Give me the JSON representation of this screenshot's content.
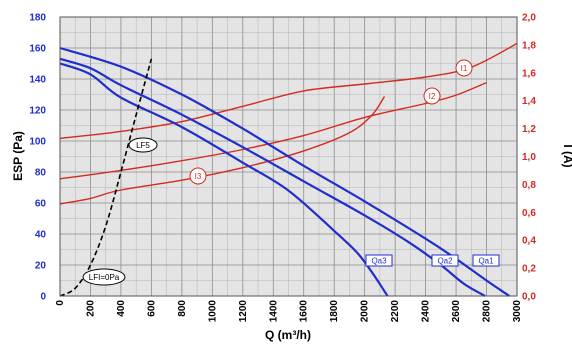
{
  "chart_data": {
    "type": "line",
    "xlabel": "Q (m³/h)",
    "ylabel_left": "ESP (Pa)",
    "ylabel_right": "I (A)",
    "xlim": [
      0,
      3000
    ],
    "ylim_left": [
      0,
      180
    ],
    "ylim_right": [
      0,
      2.0
    ],
    "x_ticks": [
      "0",
      "200",
      "400",
      "600",
      "800",
      "1000",
      "1200",
      "1400",
      "1600",
      "1800",
      "2000",
      "2200",
      "2400",
      "2600",
      "2800",
      "3000"
    ],
    "y_left_ticks": [
      "0",
      "20",
      "40",
      "60",
      "80",
      "100",
      "120",
      "140",
      "160",
      "180"
    ],
    "y_right_ticks": [
      "0,0",
      "0,2",
      "0,4",
      "0,6",
      "0,8",
      "1,0",
      "1,2",
      "1,4",
      "1,6",
      "1,8",
      "2,0"
    ],
    "grid": true,
    "colors": {
      "pressure": "#1f2fcc",
      "current": "#d42a20",
      "lf": "#000000",
      "axis_left": "#1f2fcc",
      "axis_right": "#d42a20"
    },
    "pressure_series": [
      {
        "name": "Qa1",
        "axis": "left",
        "color": "#1f2fcc",
        "x": [
          0,
          400,
          800,
          1200,
          1600,
          2000,
          2400,
          2600,
          2800,
          2950
        ],
        "y": [
          160,
          148,
          130,
          108,
          84,
          61,
          37,
          24,
          10,
          0
        ]
      },
      {
        "name": "Qa2",
        "axis": "left",
        "color": "#1f2fcc",
        "x": [
          0,
          200,
          400,
          800,
          1200,
          1600,
          2000,
          2300,
          2500,
          2650,
          2790
        ],
        "y": [
          153,
          147,
          136,
          117,
          96,
          74,
          52,
          34,
          20,
          8,
          0
        ]
      },
      {
        "name": "Qa3",
        "axis": "left",
        "color": "#1f2fcc",
        "x": [
          0,
          200,
          400,
          800,
          1200,
          1500,
          1800,
          1950,
          2050,
          2150
        ],
        "y": [
          150,
          143,
          128,
          109,
          86,
          68,
          42,
          28,
          15,
          0
        ]
      }
    ],
    "current_series": [
      {
        "name": "I1",
        "axis": "right",
        "color": "#d42a20",
        "x": [
          0,
          400,
          800,
          1200,
          1600,
          2000,
          2400,
          2700,
          3000
        ],
        "y": [
          1.13,
          1.18,
          1.25,
          1.36,
          1.47,
          1.52,
          1.57,
          1.64,
          1.81
        ]
      },
      {
        "name": "I2",
        "axis": "right",
        "color": "#d42a20",
        "x": [
          0,
          400,
          800,
          1200,
          1600,
          2000,
          2400,
          2600,
          2800
        ],
        "y": [
          0.84,
          0.9,
          0.97,
          1.05,
          1.15,
          1.28,
          1.38,
          1.44,
          1.53
        ]
      },
      {
        "name": "I3",
        "axis": "right",
        "color": "#d42a20",
        "x": [
          0,
          200,
          400,
          800,
          1200,
          1600,
          1900,
          2050,
          2130
        ],
        "y": [
          0.66,
          0.7,
          0.76,
          0.83,
          0.92,
          1.04,
          1.17,
          1.3,
          1.43
        ]
      }
    ],
    "system_curve": {
      "name": "LF5",
      "color": "#000000",
      "dashed": true,
      "x": [
        0,
        100,
        200,
        300,
        400,
        500,
        600
      ],
      "y": [
        0,
        5,
        20,
        45,
        80,
        117,
        153
      ]
    },
    "annotations": {
      "qa1": "Qa1",
      "qa2": "Qa2",
      "qa3": "Qa3",
      "i1": "I1",
      "i2": "I2",
      "i3": "I3",
      "lf5": "LF5",
      "lfi": "LFI=0Pa"
    }
  }
}
